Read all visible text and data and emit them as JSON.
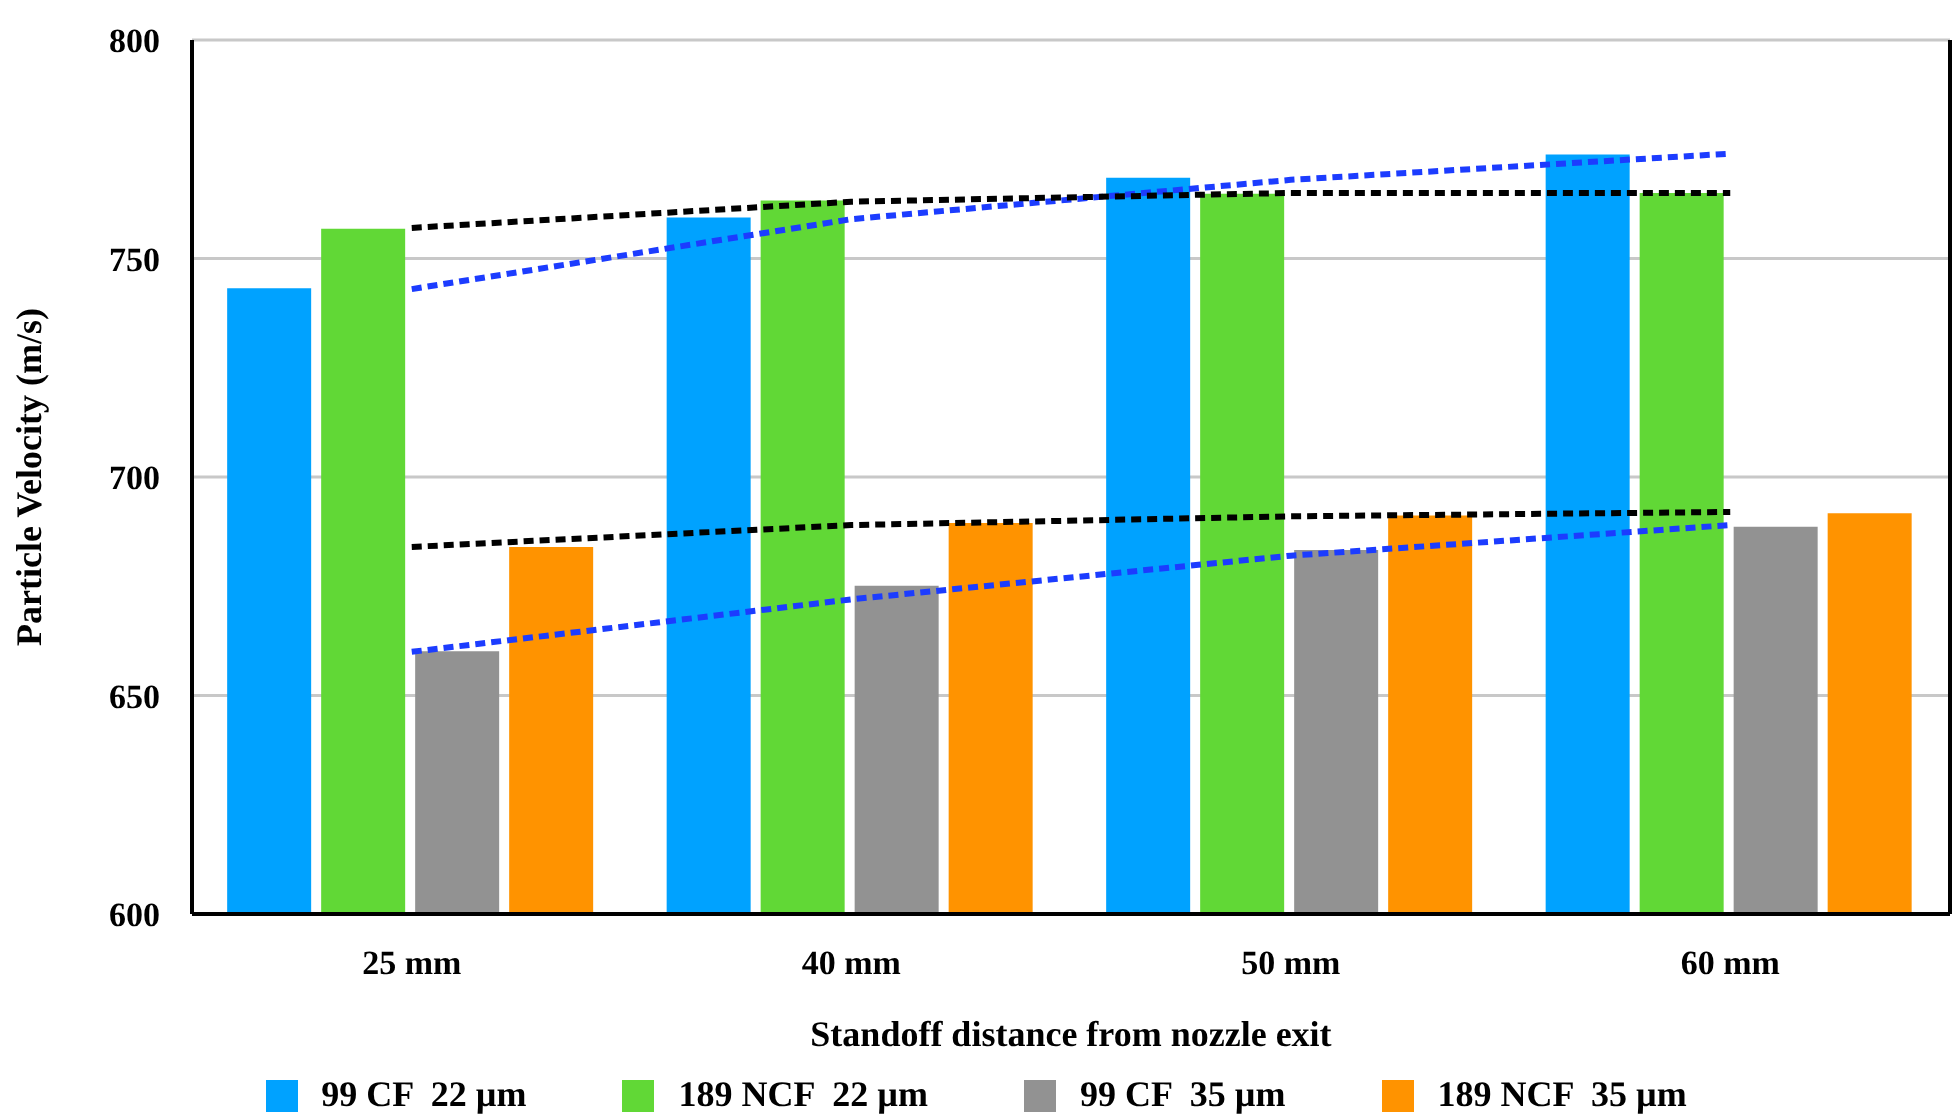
{
  "chart_data": {
    "type": "bar",
    "xlabel": "Standoff distance from nozzle exit",
    "ylabel": "Particle Velocity (m/s)",
    "categories": [
      "25 mm",
      "40 mm",
      "50 mm",
      "60 mm"
    ],
    "series": [
      {
        "name": "99 CF  22 µm",
        "color": "#00a2ff",
        "values": [
          743.2,
          759.4,
          768.5,
          773.8
        ]
      },
      {
        "name": "189 NCF  22 µm",
        "color": "#61d836",
        "values": [
          756.8,
          763.3,
          764.8,
          765
        ]
      },
      {
        "name": "99 CF  35 µm",
        "color": "#929292",
        "values": [
          660.1,
          675.1,
          683.3,
          688.6
        ]
      },
      {
        "name": "189 NCF  35 µm",
        "color": "#ff9300",
        "values": [
          684,
          689.5,
          691.2,
          691.7
        ]
      },
      {
        "type": "line",
        "color": "#1c3cff",
        "line_style": "dashed",
        "marker": "none",
        "values": [
          743,
          759,
          768,
          774
        ]
      },
      {
        "type": "line",
        "color": "#000000",
        "line_style": "dashed",
        "marker": "none",
        "values": [
          757,
          763,
          765,
          765
        ]
      },
      {
        "type": "line",
        "color": "#1c3cff",
        "line_style": "dashed",
        "marker": "none",
        "values": [
          660,
          672,
          682,
          689
        ]
      },
      {
        "type": "line",
        "color": "#000000",
        "line_style": "dashed",
        "marker": "none",
        "values": [
          684,
          689,
          691,
          692
        ]
      }
    ],
    "ylim": [
      600,
      800
    ],
    "yticks": [
      600,
      650,
      700,
      750,
      800
    ],
    "grid": "y",
    "legend": "bottom"
  }
}
